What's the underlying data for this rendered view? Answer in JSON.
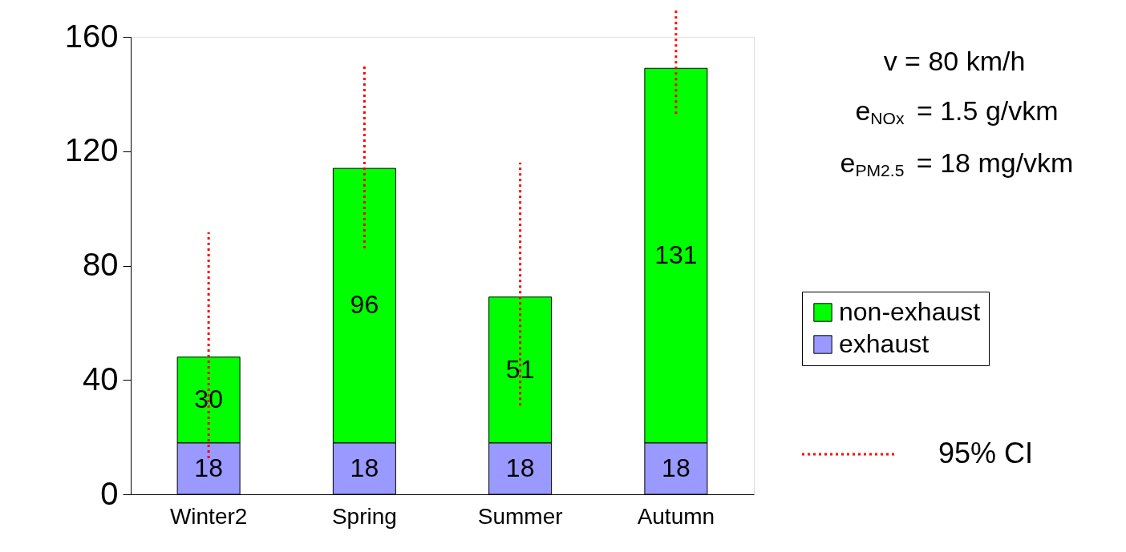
{
  "chart_data": {
    "type": "bar",
    "stacked": true,
    "data_labels": true,
    "grid": false,
    "legend": "right",
    "categories": [
      "Winter2",
      "Spring",
      "Summer",
      "Autumn"
    ],
    "series": [
      {
        "name": "exhaust",
        "color": "#9999ff",
        "values": [
          18,
          18,
          18,
          18
        ]
      },
      {
        "name": "non-exhaust",
        "color": "#00ff00",
        "values": [
          30,
          96,
          51,
          131
        ],
        "errors": [
          [
            12.6,
            91.6
          ],
          [
            86,
            150
          ],
          [
            31,
            116
          ],
          [
            133,
            170
          ]
        ]
      }
    ],
    "ylim": [
      0,
      160
    ],
    "yticks": [
      0,
      40,
      80,
      120,
      160
    ],
    "annotations": [
      "v = 80 km/h",
      "e$_{NOx}$ = 1.5 g/vkm",
      "e$_{PM2.5}$ = 18 mg/vkm",
      "95% CI"
    ]
  }
}
